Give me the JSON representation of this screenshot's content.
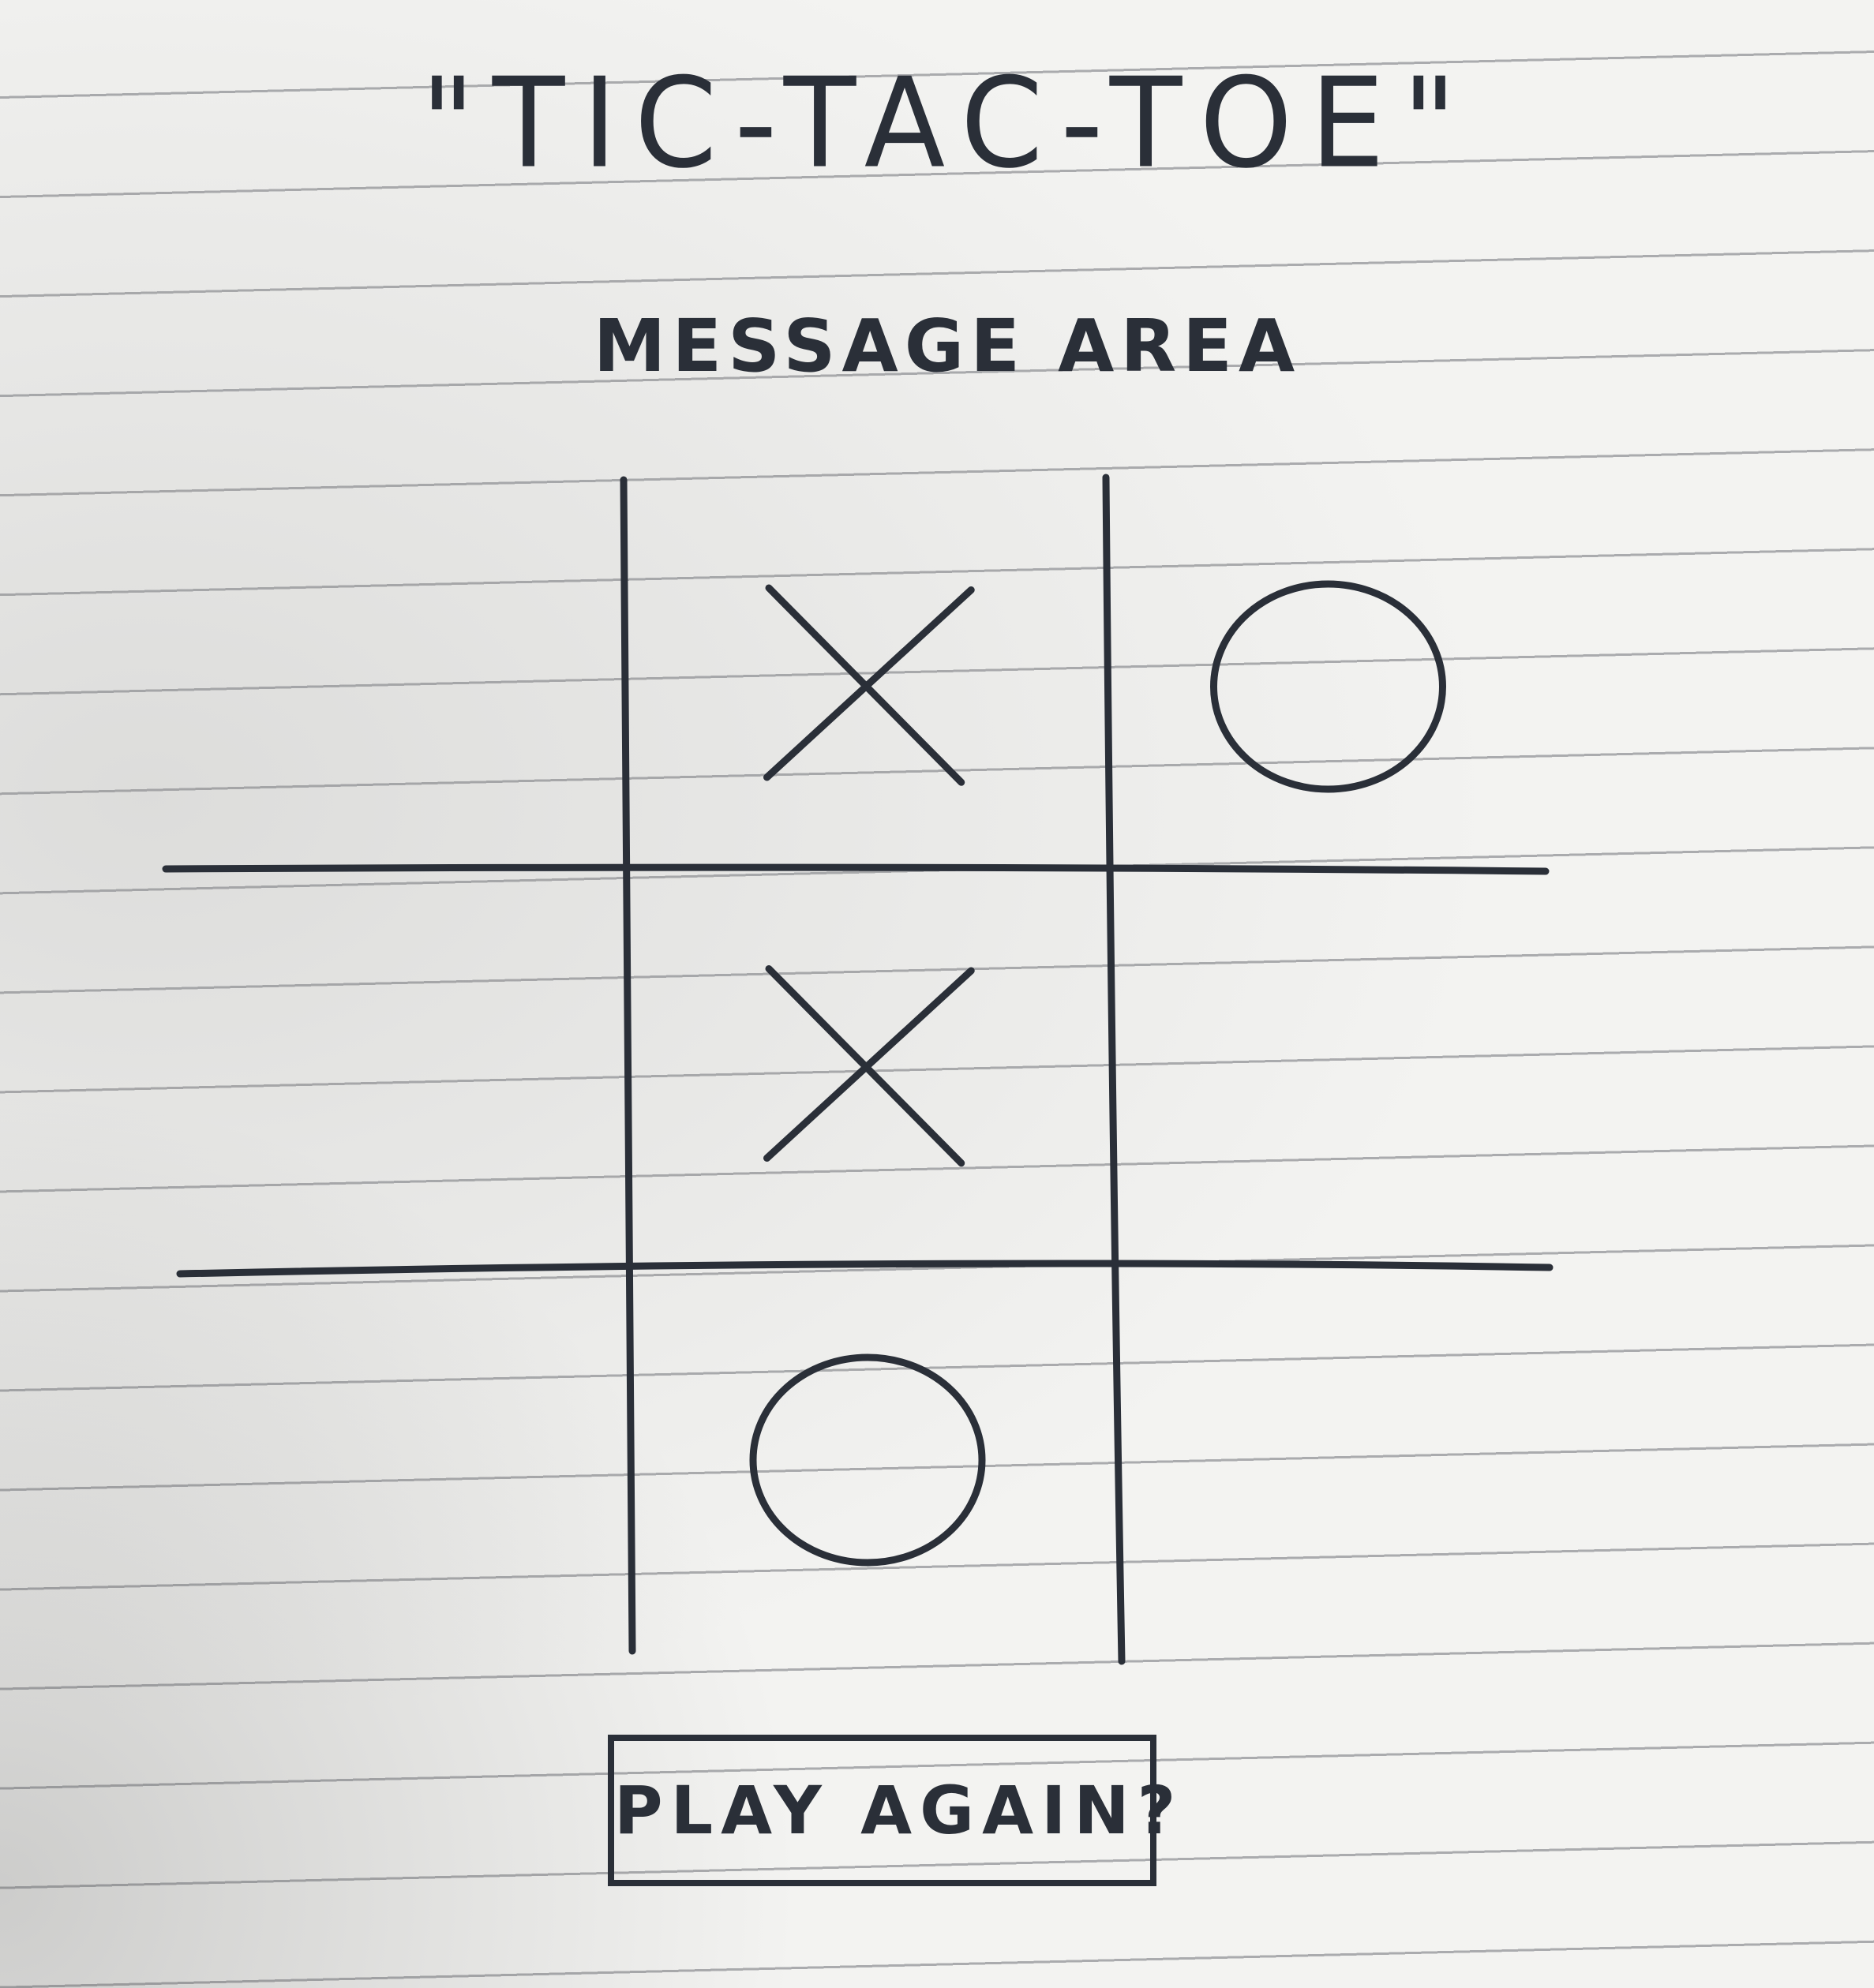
{
  "title": "\"TIC-TAC-TOE\"",
  "message_area": "MESSAGE AREA",
  "board": {
    "cells": [
      [
        "",
        "X",
        "O"
      ],
      [
        "",
        "X",
        ""
      ],
      [
        "",
        "O",
        ""
      ]
    ]
  },
  "play_again_label": "PLAY AGAIN?",
  "colors": {
    "ink": "#2a2f38",
    "paper": "#f3f3f1",
    "ruled_line": "#6e7076"
  }
}
